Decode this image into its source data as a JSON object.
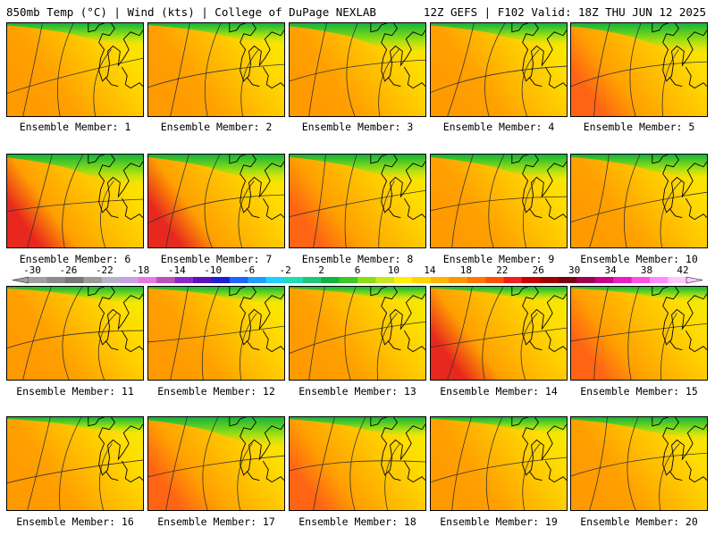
{
  "header": {
    "left": "850mb Temp (°C) | Wind (kts) | College of DuPage NEXLAB",
    "right": "12Z GEFS | F102 Valid: 18Z THU JUN 12 2025"
  },
  "members": [
    {
      "label": "Ensemble Member: 1",
      "warm": 0.35,
      "cool": 0.35
    },
    {
      "label": "Ensemble Member: 2",
      "warm": 0.3,
      "cool": 0.3
    },
    {
      "label": "Ensemble Member: 3",
      "warm": 0.15,
      "cool": 0.55
    },
    {
      "label": "Ensemble Member: 4",
      "warm": 0.25,
      "cool": 0.35
    },
    {
      "label": "Ensemble Member: 5",
      "warm": 0.7,
      "cool": 0.55
    },
    {
      "label": "Ensemble Member: 6",
      "warm": 0.75,
      "cool": 0.55
    },
    {
      "label": "Ensemble Member: 7",
      "warm": 0.75,
      "cool": 0.5
    },
    {
      "label": "Ensemble Member: 8",
      "warm": 0.5,
      "cool": 0.45
    },
    {
      "label": "Ensemble Member: 9",
      "warm": 0.25,
      "cool": 0.45
    },
    {
      "label": "Ensemble Member: 10",
      "warm": 0.4,
      "cool": 0.4
    },
    {
      "label": "Ensemble Member: 11",
      "warm": 0.4,
      "cool": 0.2
    },
    {
      "label": "Ensemble Member: 12",
      "warm": 0.45,
      "cool": 0.2
    },
    {
      "label": "Ensemble Member: 13",
      "warm": 0.35,
      "cool": 0.15
    },
    {
      "label": "Ensemble Member: 14",
      "warm": 0.85,
      "cool": 0.15
    },
    {
      "label": "Ensemble Member: 15",
      "warm": 0.55,
      "cool": 0.15
    },
    {
      "label": "Ensemble Member: 16",
      "warm": 0.45,
      "cool": 0.2
    },
    {
      "label": "Ensemble Member: 17",
      "warm": 0.5,
      "cool": 0.55
    },
    {
      "label": "Ensemble Member: 18",
      "warm": 0.5,
      "cool": 0.3
    },
    {
      "label": "Ensemble Member: 19",
      "warm": 0.4,
      "cool": 0.2
    },
    {
      "label": "Ensemble Member: 20",
      "warm": 0.45,
      "cool": 0.35
    }
  ],
  "colorbar": {
    "labels": [
      "-30",
      "-26",
      "-22",
      "-18",
      "-14",
      "-10",
      "-6",
      "-2",
      "2",
      "6",
      "10",
      "14",
      "18",
      "22",
      "26",
      "30",
      "34",
      "38",
      "42"
    ],
    "colors": [
      "#a0a0a0",
      "#8c8c8c",
      "#787878",
      "#9a9a9a",
      "#b4b4c8",
      "#c8a0e6",
      "#e678e6",
      "#be50be",
      "#8c28c8",
      "#5a14be",
      "#1e1ed2",
      "#1e64ff",
      "#1ea0ff",
      "#1ed2ff",
      "#1edcb4",
      "#1ec878",
      "#14b43c",
      "#3cc828",
      "#8cdc14",
      "#c8e61e",
      "#fff000",
      "#ffd200",
      "#ffb400",
      "#ff9600",
      "#ff7800",
      "#ff5000",
      "#f01e1e",
      "#c80000",
      "#a00000",
      "#7a0014",
      "#a00050",
      "#c8008c",
      "#e61ec8",
      "#ff50e6",
      "#ff8cff",
      "#ffc8ff"
    ]
  }
}
